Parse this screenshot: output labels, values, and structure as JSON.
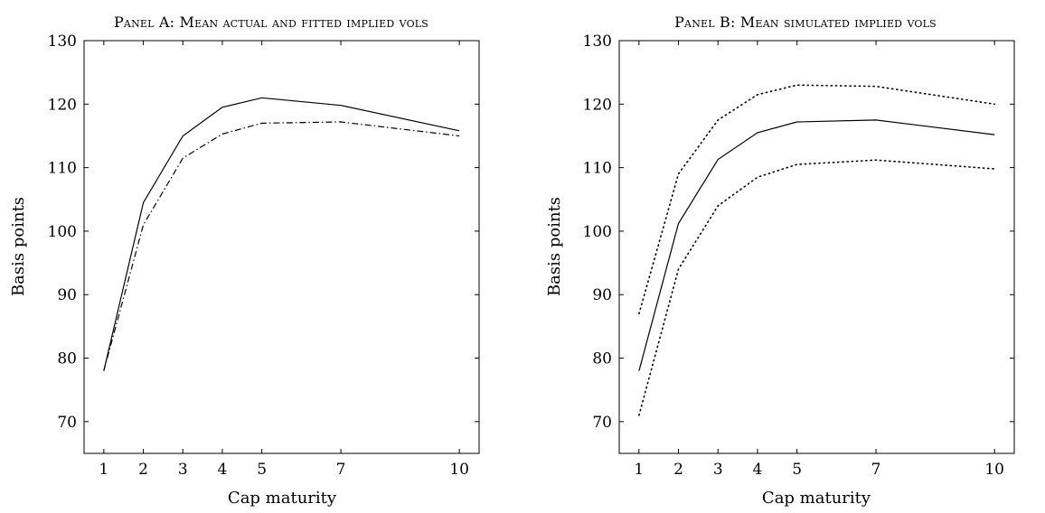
{
  "chart_data": [
    {
      "type": "line",
      "title": "Panel A: Mean actual and fitted implied vols",
      "xlabel": "Cap maturity",
      "ylabel": "Basis points",
      "x": [
        1,
        2,
        3,
        4,
        5,
        7,
        10
      ],
      "xticks": [
        1,
        2,
        3,
        4,
        5,
        7,
        10
      ],
      "xlim": [
        0.5,
        10.5
      ],
      "yticks": [
        70,
        80,
        90,
        100,
        110,
        120,
        130
      ],
      "ylim": [
        65,
        130
      ],
      "grid": false,
      "series": [
        {
          "style": "solid",
          "color": "#000000",
          "values": [
            78.0,
            104.5,
            115.0,
            119.5,
            121.0,
            119.8,
            115.8
          ]
        },
        {
          "style": "dashdot",
          "color": "#000000",
          "values": [
            78.0,
            101.0,
            111.5,
            115.3,
            117.0,
            117.2,
            115.0
          ]
        }
      ]
    },
    {
      "type": "line",
      "title": "Panel B: Mean simulated implied vols",
      "xlabel": "Cap maturity",
      "ylabel": "Basis points",
      "x": [
        1,
        2,
        3,
        4,
        5,
        7,
        10
      ],
      "xticks": [
        1,
        2,
        3,
        4,
        5,
        7,
        10
      ],
      "xlim": [
        0.5,
        10.5
      ],
      "yticks": [
        70,
        80,
        90,
        100,
        110,
        120,
        130
      ],
      "ylim": [
        65,
        130
      ],
      "grid": false,
      "series": [
        {
          "style": "dotted",
          "color": "#000000",
          "values": [
            87.0,
            109.0,
            117.5,
            121.5,
            123.0,
            122.8,
            120.0
          ]
        },
        {
          "style": "solid",
          "color": "#000000",
          "values": [
            78.0,
            101.2,
            111.3,
            115.5,
            117.2,
            117.5,
            115.2
          ]
        },
        {
          "style": "dotted",
          "color": "#000000",
          "values": [
            71.0,
            94.0,
            104.0,
            108.5,
            110.5,
            111.2,
            109.8
          ]
        }
      ]
    }
  ]
}
